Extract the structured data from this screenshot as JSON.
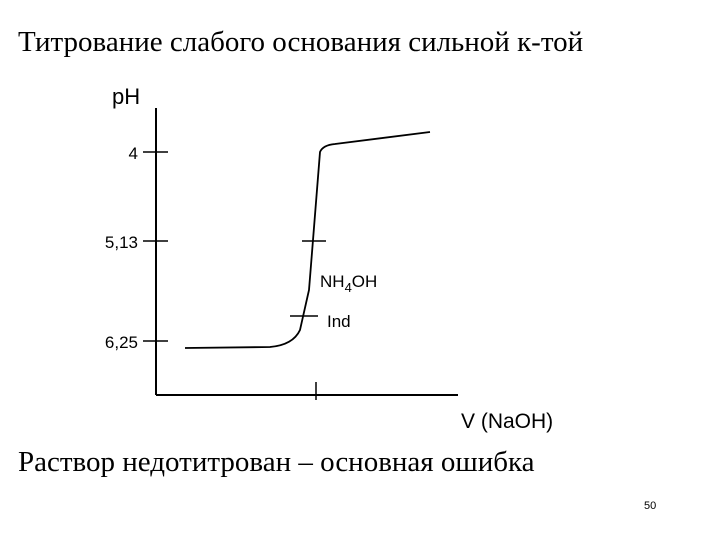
{
  "slide": {
    "title": "Титрование слабого основания сильной к-той",
    "caption": "Раствор недотитрован – основная ошибка",
    "page_number": "50"
  },
  "diagram": {
    "y_axis_label": "pH",
    "x_axis_label": "V (NaOH)",
    "y_ticks": [
      "4",
      "5,13",
      "6,25"
    ],
    "marks": {
      "nh4oh_main": "NH",
      "nh4oh_sub": "4",
      "nh4oh_tail": "OH",
      "ind": "Ind"
    }
  }
}
